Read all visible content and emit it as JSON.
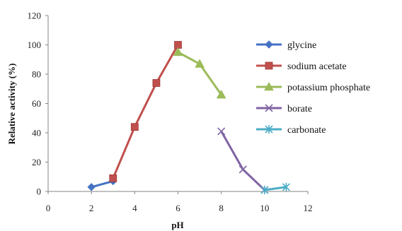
{
  "chart_data": {
    "type": "line",
    "xlabel": "pH",
    "ylabel": "Relative activity (%)",
    "xlim": [
      0,
      12
    ],
    "ylim": [
      0,
      120
    ],
    "xticks": [
      "0",
      "2",
      "4",
      "6",
      "8",
      "10",
      "12"
    ],
    "yticks": [
      "0",
      "20",
      "40",
      "60",
      "80",
      "100",
      "120"
    ],
    "grid": "none",
    "legend_position": "right",
    "series": [
      {
        "name": "glycine",
        "color": "#4472C4",
        "marker": "diamond",
        "points": [
          [
            2,
            3
          ],
          [
            3,
            7
          ]
        ]
      },
      {
        "name": "sodium acetate",
        "color": "#C0504D",
        "marker": "square",
        "points": [
          [
            3,
            9
          ],
          [
            4,
            44
          ],
          [
            5,
            74
          ],
          [
            6,
            100
          ]
        ]
      },
      {
        "name": "potassium phosphate",
        "color": "#9BBB59",
        "marker": "triangle",
        "points": [
          [
            6,
            95
          ],
          [
            7,
            87
          ],
          [
            8,
            66
          ]
        ]
      },
      {
        "name": "borate",
        "color": "#8064A2",
        "marker": "x",
        "points": [
          [
            8,
            41
          ],
          [
            9,
            15
          ],
          [
            10,
            1
          ]
        ]
      },
      {
        "name": "carbonate",
        "color": "#4BACC6",
        "marker": "asterisk",
        "points": [
          [
            10,
            1
          ],
          [
            11,
            3
          ]
        ]
      }
    ]
  }
}
